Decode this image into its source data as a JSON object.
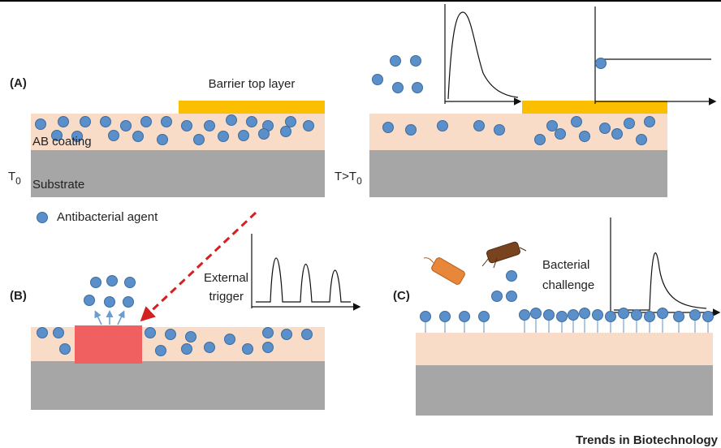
{
  "panel_a": {
    "label": "(A)",
    "barrier_label": "Barrier top layer",
    "coating_label": "AB coating",
    "substrate_label": "Substrate",
    "temp_initial": {
      "main": "T",
      "sub": "0"
    },
    "temp_raised": {
      "main": "T>T",
      "sub": "0"
    }
  },
  "legend": {
    "label": "Antibacterial agent"
  },
  "panel_b": {
    "label": "(B)",
    "trigger_label": [
      "External",
      "trigger"
    ]
  },
  "panel_c": {
    "label": "(C)",
    "challenge_label": [
      "Bacterial",
      "challenge"
    ]
  },
  "footer": {
    "source": "Trends in Biotechnology"
  }
}
